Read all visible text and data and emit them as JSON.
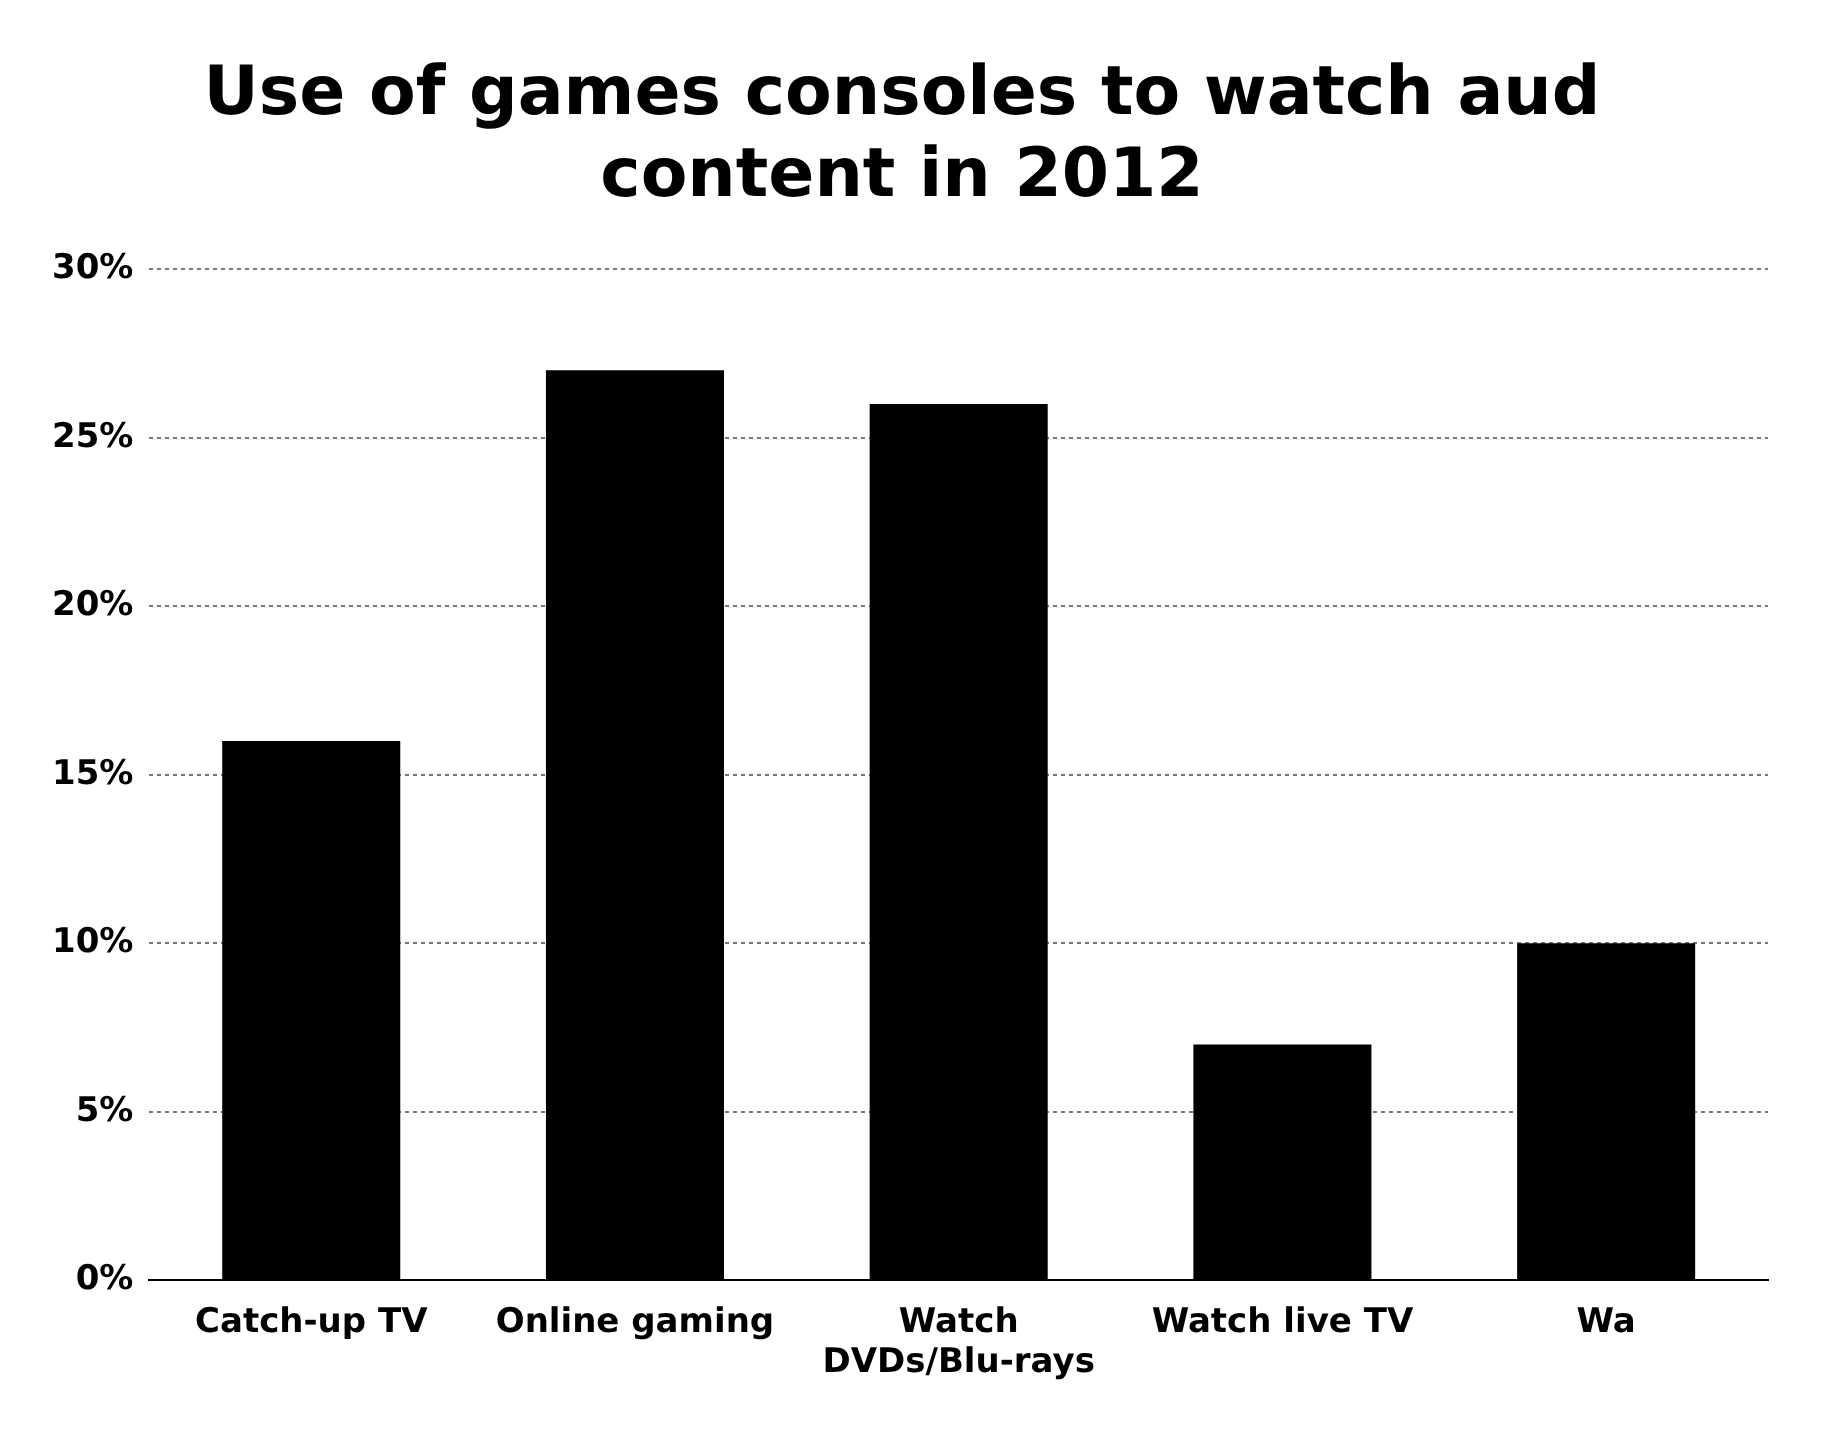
{
  "chart_data": {
    "type": "bar",
    "title": "Use of games consoles to watch aud\ncontent in 2012",
    "categories": [
      "Catch-up TV",
      "Online gaming",
      "Watch DVDs/Blu-rays",
      "Watch live TV",
      "Wa"
    ],
    "values": [
      16,
      27,
      26,
      7,
      10
    ],
    "color": "#000000",
    "ylim": [
      0,
      30
    ],
    "yticks": [
      {
        "value": 0,
        "label": "0%"
      },
      {
        "value": 5,
        "label": "5%"
      },
      {
        "value": 10,
        "label": "10%"
      },
      {
        "value": 15,
        "label": "15%"
      },
      {
        "value": 20,
        "label": "20%"
      },
      {
        "value": 25,
        "label": "25%"
      },
      {
        "value": 30,
        "label": "30%"
      }
    ],
    "grid": "y"
  }
}
